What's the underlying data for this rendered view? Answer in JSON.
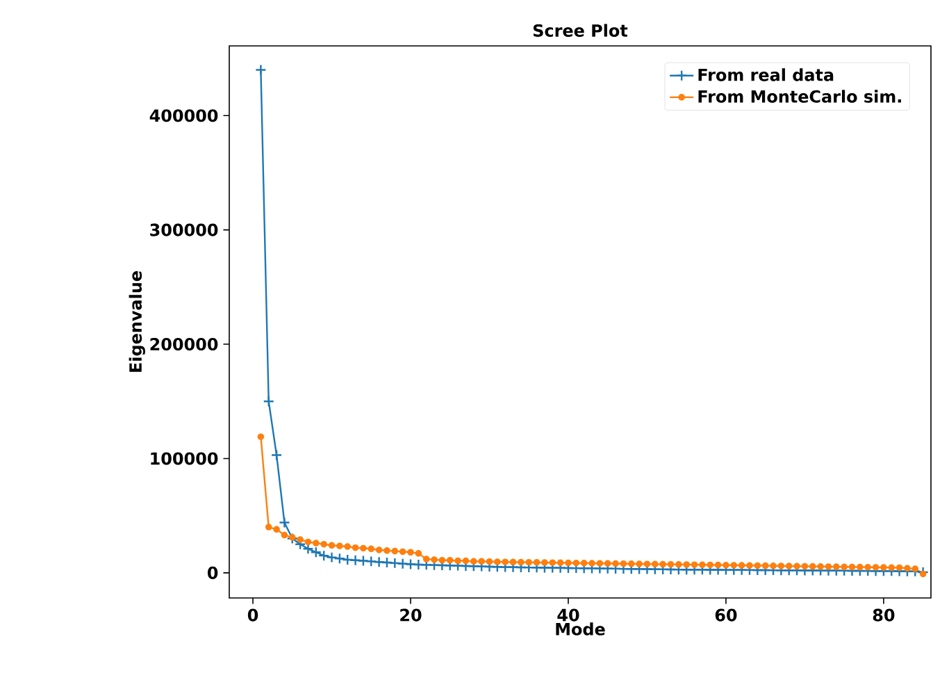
{
  "chart_data": {
    "type": "line",
    "title": "Scree Plot",
    "xlabel": "Mode",
    "ylabel": "Eigenvalue",
    "x": [
      1,
      2,
      3,
      4,
      5,
      6,
      7,
      8,
      9,
      10,
      11,
      12,
      13,
      14,
      15,
      16,
      17,
      18,
      19,
      20,
      21,
      22,
      23,
      24,
      25,
      26,
      27,
      28,
      29,
      30,
      31,
      32,
      33,
      34,
      35,
      36,
      37,
      38,
      39,
      40,
      41,
      42,
      43,
      44,
      45,
      46,
      47,
      48,
      49,
      50,
      51,
      52,
      53,
      54,
      55,
      56,
      57,
      58,
      59,
      60,
      61,
      62,
      63,
      64,
      65,
      66,
      67,
      68,
      69,
      70,
      71,
      72,
      73,
      74,
      75,
      76,
      77,
      78,
      79,
      80,
      81,
      82,
      83,
      84,
      85
    ],
    "series": [
      {
        "name": "From real data",
        "color": "#1f77b4",
        "marker": "cross",
        "values": [
          440000,
          150000,
          103000,
          44000,
          30000,
          25000,
          21000,
          18000,
          15000,
          13500,
          12500,
          11500,
          11000,
          10500,
          10000,
          9500,
          9000,
          8500,
          8000,
          7500,
          7200,
          7000,
          6800,
          6600,
          6400,
          6200,
          6000,
          5800,
          5600,
          5400,
          5200,
          5000,
          4900,
          4800,
          4700,
          4600,
          4500,
          4400,
          4300,
          4200,
          4100,
          4000,
          3900,
          3800,
          3700,
          3600,
          3500,
          3400,
          3300,
          3200,
          3100,
          3000,
          2900,
          2850,
          2800,
          2750,
          2700,
          2650,
          2600,
          2550,
          2500,
          2450,
          2400,
          2350,
          2300,
          2250,
          2200,
          2150,
          2100,
          2050,
          2000,
          1950,
          1900,
          1850,
          1800,
          1750,
          1700,
          1650,
          1600,
          1550,
          1500,
          1400,
          1300,
          1200,
          500
        ]
      },
      {
        "name": "From MonteCarlo sim.",
        "color": "#ff7f0e",
        "marker": "circle",
        "values": [
          119000,
          40000,
          38000,
          33000,
          31000,
          29000,
          27000,
          26000,
          25000,
          24000,
          23500,
          23000,
          22000,
          21500,
          21000,
          20000,
          19500,
          19000,
          18500,
          18000,
          17000,
          12000,
          11500,
          11000,
          11000,
          10500,
          10500,
          10000,
          10000,
          9800,
          9600,
          9500,
          9400,
          9300,
          9200,
          9100,
          9000,
          8900,
          8800,
          8700,
          8600,
          8500,
          8400,
          8300,
          8200,
          8100,
          8000,
          7900,
          7800,
          7700,
          7600,
          7500,
          7400,
          7300,
          7200,
          7100,
          7000,
          6900,
          6800,
          6700,
          6600,
          6500,
          6400,
          6300,
          6200,
          6100,
          6000,
          5900,
          5800,
          5700,
          5600,
          5500,
          5400,
          5300,
          5200,
          5100,
          5000,
          4900,
          4800,
          4700,
          4600,
          4500,
          4000,
          3500,
          -1000
        ]
      }
    ],
    "xlim": [
      -3,
      86
    ],
    "ylim": [
      -22000,
      461000
    ],
    "xticks": [
      0,
      20,
      40,
      60,
      80
    ],
    "yticks": [
      0,
      100000,
      200000,
      300000,
      400000
    ],
    "legend": "top right",
    "grid": false
  }
}
